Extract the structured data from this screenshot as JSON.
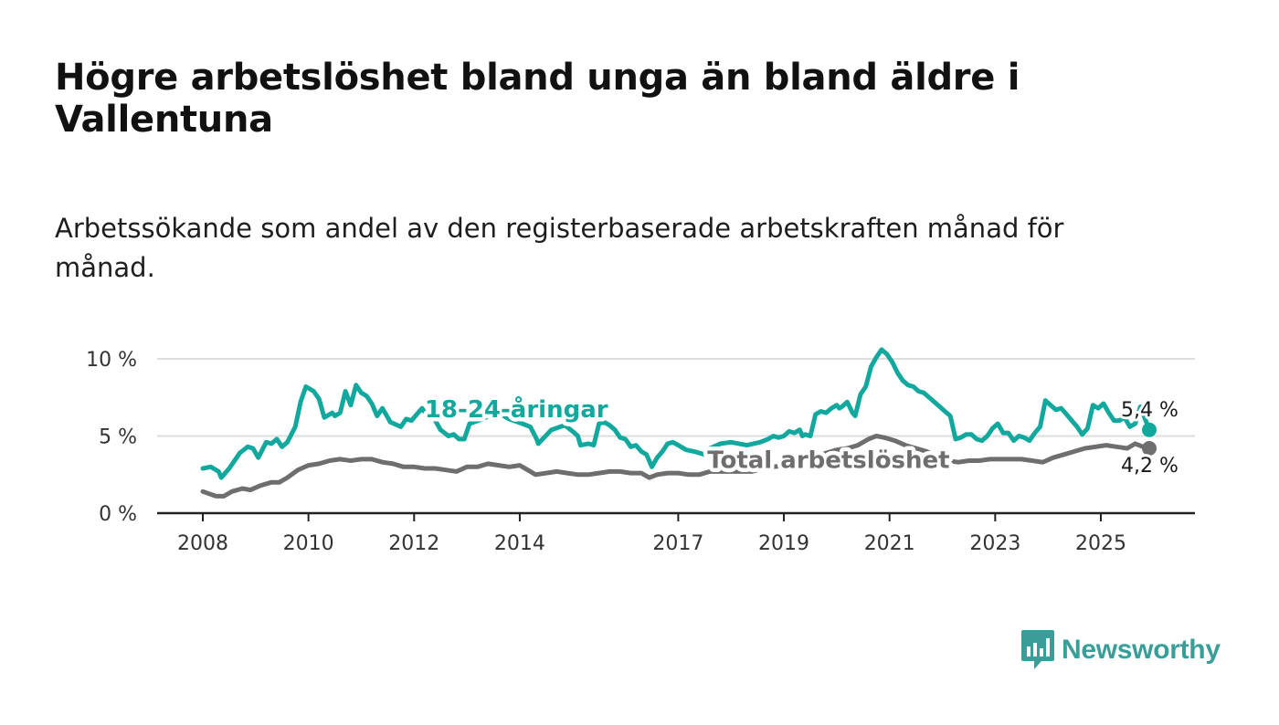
{
  "header": {
    "title": "Högre arbetslöshet bland unga än bland äldre i Vallentuna",
    "subtitle": "Arbetssökande som andel av den registerbaserade arbetskraften månad för månad."
  },
  "brand": {
    "name": "Newsworthy"
  },
  "colors": {
    "youth": "#13a89e",
    "total": "#6e6e6e",
    "grid": "#dedede",
    "axis": "#222222",
    "brand": "#3a9e98"
  },
  "chart_data": {
    "type": "line",
    "title": "Högre arbetslöshet bland unga än bland äldre i Vallentuna",
    "xlabel": "",
    "ylabel": "",
    "x_range": [
      2008.0,
      2025.917
    ],
    "ylim": [
      0,
      10
    ],
    "y_ticks": [
      {
        "value": 0,
        "label": "0 %"
      },
      {
        "value": 5,
        "label": "5 %"
      },
      {
        "value": 10,
        "label": "10 %"
      }
    ],
    "x_ticks": [
      {
        "value": 2008,
        "label": "2008"
      },
      {
        "value": 2010,
        "label": "2010"
      },
      {
        "value": 2012,
        "label": "2012"
      },
      {
        "value": 2014,
        "label": "2014"
      },
      {
        "value": 2017,
        "label": "2017"
      },
      {
        "value": 2019,
        "label": "2019"
      },
      {
        "value": 2021,
        "label": "2021"
      },
      {
        "value": 2023,
        "label": "2023"
      },
      {
        "value": 2025,
        "label": "2025"
      }
    ],
    "series": [
      {
        "name": "18-24-åringar",
        "label_anchor": [
          2012.2,
          6.7
        ],
        "end_label": "5,4 %",
        "points": [
          [
            2008.0,
            2.9
          ],
          [
            2008.15,
            3.0
          ],
          [
            2008.3,
            2.7
          ],
          [
            2008.35,
            2.3
          ],
          [
            2008.5,
            2.9
          ],
          [
            2008.7,
            3.9
          ],
          [
            2008.85,
            4.3
          ],
          [
            2008.95,
            4.2
          ],
          [
            2009.05,
            3.6
          ],
          [
            2009.2,
            4.6
          ],
          [
            2009.3,
            4.5
          ],
          [
            2009.4,
            4.8
          ],
          [
            2009.5,
            4.3
          ],
          [
            2009.6,
            4.6
          ],
          [
            2009.75,
            5.6
          ],
          [
            2009.85,
            7.2
          ],
          [
            2009.95,
            8.2
          ],
          [
            2010.1,
            7.9
          ],
          [
            2010.2,
            7.4
          ],
          [
            2010.3,
            6.2
          ],
          [
            2010.45,
            6.5
          ],
          [
            2010.5,
            6.3
          ],
          [
            2010.6,
            6.5
          ],
          [
            2010.7,
            7.9
          ],
          [
            2010.8,
            7.0
          ],
          [
            2010.9,
            8.3
          ],
          [
            2011.0,
            7.8
          ],
          [
            2011.1,
            7.6
          ],
          [
            2011.2,
            7.1
          ],
          [
            2011.3,
            6.3
          ],
          [
            2011.4,
            6.8
          ],
          [
            2011.55,
            5.9
          ],
          [
            2011.75,
            5.6
          ],
          [
            2011.85,
            6.1
          ],
          [
            2011.95,
            6.0
          ],
          [
            2012.05,
            6.4
          ],
          [
            2012.15,
            6.8
          ],
          [
            2012.25,
            6.3
          ],
          [
            2012.35,
            6.3
          ],
          [
            2012.5,
            5.4
          ],
          [
            2012.65,
            5.0
          ],
          [
            2012.75,
            5.1
          ],
          [
            2012.85,
            4.8
          ],
          [
            2012.95,
            4.8
          ],
          [
            2013.05,
            5.8
          ],
          [
            2013.3,
            6.1
          ],
          [
            2013.55,
            6.6
          ],
          [
            2013.8,
            6.1
          ],
          [
            2014.05,
            5.8
          ],
          [
            2014.2,
            5.6
          ],
          [
            2014.32,
            4.8
          ],
          [
            2014.35,
            4.5
          ],
          [
            2014.6,
            5.4
          ],
          [
            2014.85,
            5.7
          ],
          [
            2015.0,
            5.3
          ],
          [
            2015.1,
            5.0
          ],
          [
            2015.15,
            4.4
          ],
          [
            2015.3,
            4.5
          ],
          [
            2015.4,
            4.4
          ],
          [
            2015.5,
            5.8
          ],
          [
            2015.6,
            5.9
          ],
          [
            2015.7,
            5.7
          ],
          [
            2015.8,
            5.4
          ],
          [
            2015.9,
            4.9
          ],
          [
            2016.0,
            4.8
          ],
          [
            2016.1,
            4.3
          ],
          [
            2016.2,
            4.4
          ],
          [
            2016.3,
            4.0
          ],
          [
            2016.4,
            3.8
          ],
          [
            2016.5,
            3.0
          ],
          [
            2016.6,
            3.6
          ],
          [
            2016.7,
            4.0
          ],
          [
            2016.8,
            4.5
          ],
          [
            2016.9,
            4.6
          ],
          [
            2017.0,
            4.4
          ],
          [
            2017.15,
            4.1
          ],
          [
            2017.3,
            4.0
          ],
          [
            2017.4,
            3.9
          ],
          [
            2017.5,
            3.8
          ],
          [
            2017.6,
            4.2
          ],
          [
            2017.8,
            4.5
          ],
          [
            2018.0,
            4.6
          ],
          [
            2018.3,
            4.4
          ],
          [
            2018.55,
            4.6
          ],
          [
            2018.7,
            4.8
          ],
          [
            2018.8,
            5.0
          ],
          [
            2018.9,
            4.9
          ],
          [
            2019.0,
            5.0
          ],
          [
            2019.1,
            5.3
          ],
          [
            2019.2,
            5.2
          ],
          [
            2019.3,
            5.4
          ],
          [
            2019.35,
            5.0
          ],
          [
            2019.4,
            5.1
          ],
          [
            2019.5,
            5.0
          ],
          [
            2019.6,
            6.4
          ],
          [
            2019.7,
            6.6
          ],
          [
            2019.8,
            6.5
          ],
          [
            2019.9,
            6.8
          ],
          [
            2020.0,
            7.0
          ],
          [
            2020.05,
            6.8
          ],
          [
            2020.1,
            6.9
          ],
          [
            2020.2,
            7.2
          ],
          [
            2020.3,
            6.5
          ],
          [
            2020.35,
            6.3
          ],
          [
            2020.45,
            7.7
          ],
          [
            2020.55,
            8.2
          ],
          [
            2020.65,
            9.5
          ],
          [
            2020.75,
            10.1
          ],
          [
            2020.85,
            10.6
          ],
          [
            2020.95,
            10.3
          ],
          [
            2021.05,
            9.8
          ],
          [
            2021.15,
            9.1
          ],
          [
            2021.25,
            8.6
          ],
          [
            2021.35,
            8.3
          ],
          [
            2021.45,
            8.2
          ],
          [
            2021.55,
            7.9
          ],
          [
            2021.65,
            7.8
          ],
          [
            2021.75,
            7.5
          ],
          [
            2021.85,
            7.2
          ],
          [
            2021.95,
            6.9
          ],
          [
            2022.05,
            6.6
          ],
          [
            2022.15,
            6.3
          ],
          [
            2022.25,
            4.8
          ],
          [
            2022.35,
            4.9
          ],
          [
            2022.45,
            5.1
          ],
          [
            2022.55,
            5.1
          ],
          [
            2022.65,
            4.8
          ],
          [
            2022.75,
            4.7
          ],
          [
            2022.85,
            5.0
          ],
          [
            2022.95,
            5.5
          ],
          [
            2023.05,
            5.8
          ],
          [
            2023.15,
            5.2
          ],
          [
            2023.25,
            5.2
          ],
          [
            2023.35,
            4.7
          ],
          [
            2023.45,
            5.0
          ],
          [
            2023.55,
            4.9
          ],
          [
            2023.65,
            4.7
          ],
          [
            2023.75,
            5.2
          ],
          [
            2023.85,
            5.6
          ],
          [
            2023.95,
            7.3
          ],
          [
            2024.05,
            7.0
          ],
          [
            2024.15,
            6.7
          ],
          [
            2024.25,
            6.8
          ],
          [
            2024.35,
            6.4
          ],
          [
            2024.45,
            6.0
          ],
          [
            2024.55,
            5.6
          ],
          [
            2024.65,
            5.1
          ],
          [
            2024.75,
            5.5
          ],
          [
            2024.85,
            7.0
          ],
          [
            2024.95,
            6.8
          ],
          [
            2025.05,
            7.1
          ],
          [
            2025.15,
            6.5
          ],
          [
            2025.25,
            6.0
          ],
          [
            2025.35,
            6.0
          ],
          [
            2025.45,
            6.2
          ],
          [
            2025.55,
            5.6
          ],
          [
            2025.65,
            5.8
          ],
          [
            2025.75,
            6.9
          ],
          [
            2025.917,
            5.4
          ]
        ]
      },
      {
        "name": "Total arbetslöshet",
        "label_anchor": [
          2017.55,
          3.4
        ],
        "end_label": "4,2 %",
        "points": [
          [
            2008.0,
            1.4
          ],
          [
            2008.25,
            1.1
          ],
          [
            2008.4,
            1.1
          ],
          [
            2008.55,
            1.4
          ],
          [
            2008.75,
            1.6
          ],
          [
            2008.9,
            1.5
          ],
          [
            2009.1,
            1.8
          ],
          [
            2009.3,
            2.0
          ],
          [
            2009.45,
            2.0
          ],
          [
            2009.6,
            2.3
          ],
          [
            2009.8,
            2.8
          ],
          [
            2010.0,
            3.1
          ],
          [
            2010.2,
            3.2
          ],
          [
            2010.4,
            3.4
          ],
          [
            2010.6,
            3.5
          ],
          [
            2010.8,
            3.4
          ],
          [
            2011.0,
            3.5
          ],
          [
            2011.2,
            3.5
          ],
          [
            2011.4,
            3.3
          ],
          [
            2011.6,
            3.2
          ],
          [
            2011.8,
            3.0
          ],
          [
            2012.0,
            3.0
          ],
          [
            2012.2,
            2.9
          ],
          [
            2012.4,
            2.9
          ],
          [
            2012.6,
            2.8
          ],
          [
            2012.8,
            2.7
          ],
          [
            2013.0,
            3.0
          ],
          [
            2013.2,
            3.0
          ],
          [
            2013.4,
            3.2
          ],
          [
            2013.6,
            3.1
          ],
          [
            2013.8,
            3.0
          ],
          [
            2014.0,
            3.1
          ],
          [
            2014.15,
            2.8
          ],
          [
            2014.3,
            2.5
          ],
          [
            2014.5,
            2.6
          ],
          [
            2014.7,
            2.7
          ],
          [
            2014.9,
            2.6
          ],
          [
            2015.1,
            2.5
          ],
          [
            2015.3,
            2.5
          ],
          [
            2015.5,
            2.6
          ],
          [
            2015.7,
            2.7
          ],
          [
            2015.9,
            2.7
          ],
          [
            2016.1,
            2.6
          ],
          [
            2016.3,
            2.6
          ],
          [
            2016.45,
            2.3
          ],
          [
            2016.6,
            2.5
          ],
          [
            2016.8,
            2.6
          ],
          [
            2017.0,
            2.6
          ],
          [
            2017.2,
            2.5
          ],
          [
            2017.4,
            2.5
          ],
          [
            2017.6,
            2.7
          ],
          [
            2017.8,
            2.7
          ],
          [
            2018.0,
            2.7
          ],
          [
            2018.2,
            2.7
          ],
          [
            2018.4,
            2.7
          ],
          [
            2018.6,
            2.9
          ],
          [
            2018.8,
            3.0
          ],
          [
            2019.0,
            3.1
          ],
          [
            2019.2,
            3.1
          ],
          [
            2019.4,
            3.3
          ],
          [
            2019.6,
            3.6
          ],
          [
            2019.8,
            3.9
          ],
          [
            2020.0,
            4.1
          ],
          [
            2020.2,
            4.2
          ],
          [
            2020.4,
            4.4
          ],
          [
            2020.6,
            4.8
          ],
          [
            2020.75,
            5.0
          ],
          [
            2020.9,
            4.9
          ],
          [
            2021.1,
            4.7
          ],
          [
            2021.3,
            4.4
          ],
          [
            2021.5,
            4.2
          ],
          [
            2021.7,
            4.0
          ],
          [
            2021.9,
            3.7
          ],
          [
            2022.1,
            3.4
          ],
          [
            2022.3,
            3.3
          ],
          [
            2022.5,
            3.4
          ],
          [
            2022.7,
            3.4
          ],
          [
            2022.9,
            3.5
          ],
          [
            2023.1,
            3.5
          ],
          [
            2023.3,
            3.5
          ],
          [
            2023.5,
            3.5
          ],
          [
            2023.7,
            3.4
          ],
          [
            2023.9,
            3.3
          ],
          [
            2024.1,
            3.6
          ],
          [
            2024.3,
            3.8
          ],
          [
            2024.5,
            4.0
          ],
          [
            2024.7,
            4.2
          ],
          [
            2024.9,
            4.3
          ],
          [
            2025.1,
            4.4
          ],
          [
            2025.3,
            4.3
          ],
          [
            2025.5,
            4.2
          ],
          [
            2025.65,
            4.5
          ],
          [
            2025.8,
            4.3
          ],
          [
            2025.917,
            4.2
          ]
        ]
      }
    ]
  }
}
